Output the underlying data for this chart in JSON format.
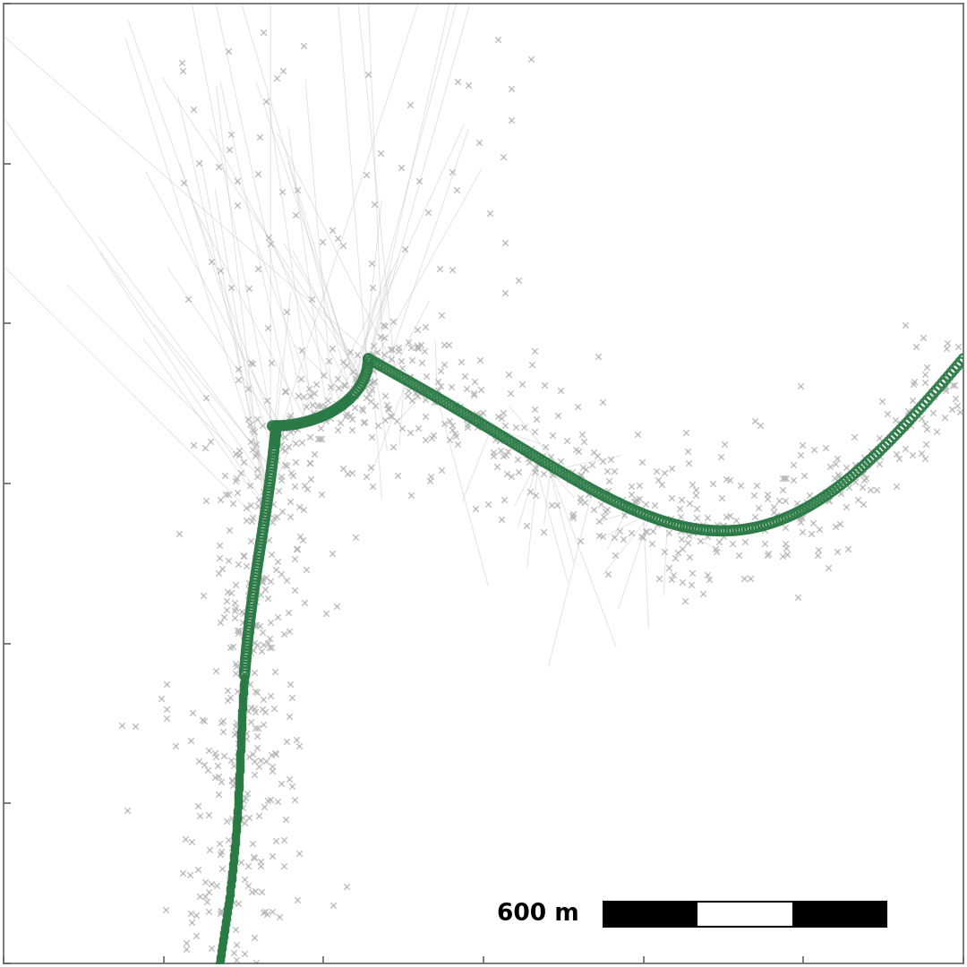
{
  "background_color": "#ffffff",
  "raw_color": "#b5b5b5",
  "smoothed_color": "#2a7a45",
  "line_color": "#c8c8c8",
  "scalebar_label": "600 m",
  "figsize": [
    10.8,
    10.8
  ],
  "dpi": 100,
  "seed": 7,
  "raw_marker_size": 22,
  "smooth_marker_size": 55,
  "raw_marker_alpha": 0.85,
  "smooth_alpha": 0.88,
  "line_alpha": 0.5
}
